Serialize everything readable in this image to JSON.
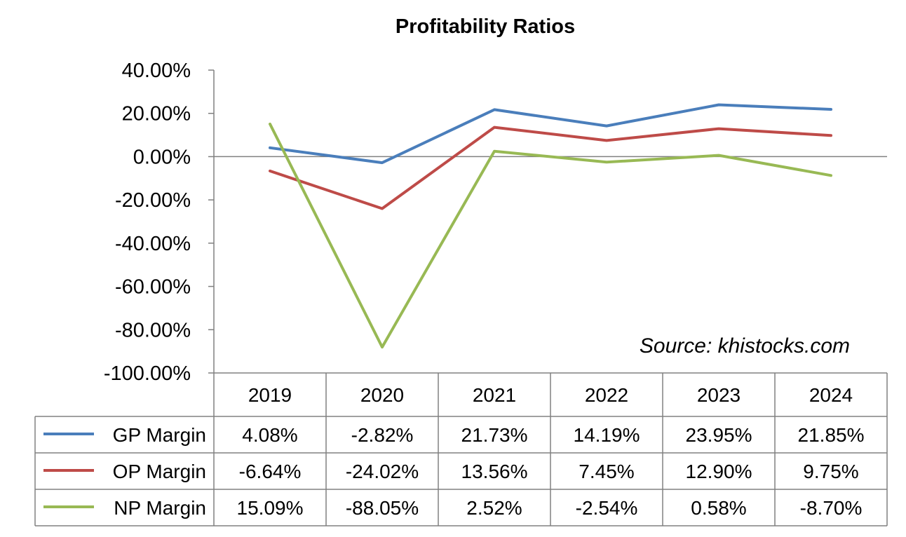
{
  "chart_data": {
    "type": "line",
    "title": "Profitability Ratios",
    "categories": [
      "2019",
      "2020",
      "2021",
      "2022",
      "2023",
      "2024"
    ],
    "ylim": [
      -100,
      40
    ],
    "yticks": [
      "40.00%",
      "20.00%",
      "0.00%",
      "-20.00%",
      "-40.00%",
      "-60.00%",
      "-80.00%",
      "-100.00%"
    ],
    "grid": false,
    "legend": "data-table-left",
    "series": [
      {
        "name": "GP Margin",
        "color": "#4a7ebb",
        "values": [
          4.08,
          -2.82,
          21.73,
          14.19,
          23.95,
          21.85
        ],
        "labels": [
          "4.08%",
          "-2.82%",
          "21.73%",
          "14.19%",
          "23.95%",
          "21.85%"
        ]
      },
      {
        "name": "OP Margin",
        "color": "#be4b48",
        "values": [
          -6.64,
          -24.02,
          13.56,
          7.45,
          12.9,
          9.75
        ],
        "labels": [
          "-6.64%",
          "-24.02%",
          "13.56%",
          "7.45%",
          "12.90%",
          "9.75%"
        ]
      },
      {
        "name": "NP Margin",
        "color": "#98b954",
        "values": [
          15.09,
          -88.05,
          2.52,
          -2.54,
          0.58,
          -8.7
        ],
        "labels": [
          "15.09%",
          "-88.05%",
          "2.52%",
          "-2.54%",
          "0.58%",
          "-8.70%"
        ]
      }
    ],
    "annotation": "Source: khistocks.com"
  }
}
